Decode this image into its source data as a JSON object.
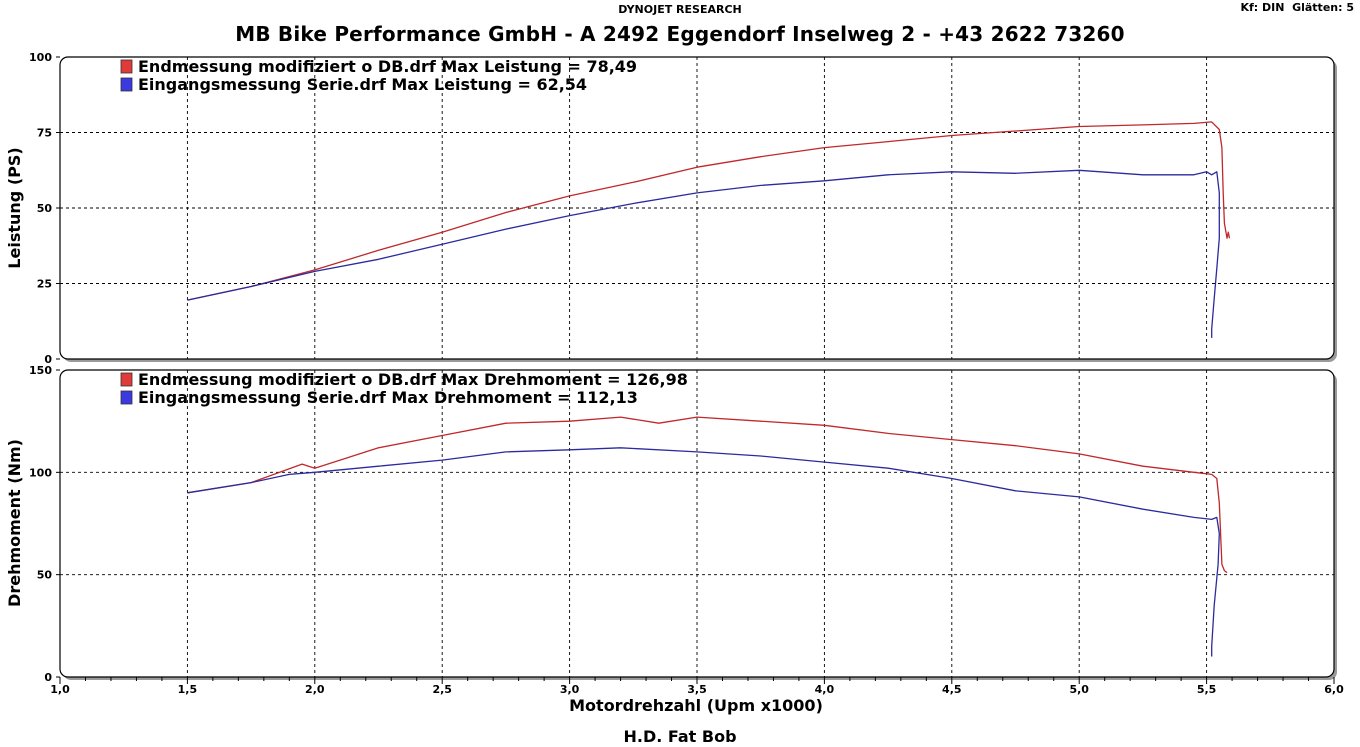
{
  "header": {
    "brand": "DYNOJET RESEARCH",
    "settings": "Kf: DIN  Glätten: 5",
    "title": "MB Bike Performance GmbH - A 2492 Eggendorf Inselweg 2 - +43 2622 73260"
  },
  "footer": {
    "vehicle": "H.D. Fat Bob"
  },
  "colors": {
    "red": "#c0282a",
    "blue": "#2b2b9e",
    "red_swatch": "#e03a3a",
    "blue_swatch": "#3a3ae0"
  },
  "chart_data": [
    {
      "type": "line",
      "ylabel": "Leistung (PS)",
      "xlabel": "Motordrehzahl (Upm x1000)",
      "xlim": [
        1.0,
        6.0
      ],
      "ylim": [
        0,
        100
      ],
      "yticks": [
        "0",
        "25",
        "50",
        "75",
        "100"
      ],
      "xticks": [
        "1,0",
        "1,5",
        "2,0",
        "2,5",
        "3,0",
        "3,5",
        "4,0",
        "4,5",
        "5,0",
        "5,5",
        "6,0"
      ],
      "grid": true,
      "legend_position": "top-left",
      "series": [
        {
          "name": "Endmessung modifiziert o DB.drf Max Leistung = 78,49",
          "color": "red",
          "points": [
            [
              1.5,
              19.5
            ],
            [
              1.75,
              24
            ],
            [
              2.0,
              29.5
            ],
            [
              2.25,
              36
            ],
            [
              2.5,
              42
            ],
            [
              2.75,
              48.5
            ],
            [
              3.0,
              54
            ],
            [
              3.25,
              58.5
            ],
            [
              3.5,
              63.5
            ],
            [
              3.75,
              67
            ],
            [
              4.0,
              70
            ],
            [
              4.25,
              72
            ],
            [
              4.5,
              74
            ],
            [
              4.75,
              75.5
            ],
            [
              5.0,
              77
            ],
            [
              5.25,
              77.5
            ],
            [
              5.45,
              78
            ],
            [
              5.52,
              78.5
            ],
            [
              5.55,
              76
            ],
            [
              5.56,
              70
            ],
            [
              5.565,
              55
            ],
            [
              5.57,
              45
            ],
            [
              5.58,
              40
            ],
            [
              5.585,
              42
            ],
            [
              5.59,
              40
            ]
          ]
        },
        {
          "name": "Eingangsmessung Serie.drf Max Leistung = 62,54",
          "color": "blue",
          "points": [
            [
              1.5,
              19.5
            ],
            [
              1.75,
              24
            ],
            [
              2.0,
              29
            ],
            [
              2.25,
              33
            ],
            [
              2.5,
              38
            ],
            [
              2.75,
              43
            ],
            [
              3.0,
              47.5
            ],
            [
              3.25,
              51.5
            ],
            [
              3.5,
              55
            ],
            [
              3.75,
              57.5
            ],
            [
              4.0,
              59
            ],
            [
              4.25,
              61
            ],
            [
              4.5,
              62
            ],
            [
              4.75,
              61.5
            ],
            [
              5.0,
              62.5
            ],
            [
              5.25,
              61
            ],
            [
              5.45,
              61
            ],
            [
              5.5,
              62
            ],
            [
              5.52,
              61
            ],
            [
              5.54,
              62
            ],
            [
              5.55,
              55
            ],
            [
              5.55,
              40
            ],
            [
              5.54,
              30
            ],
            [
              5.53,
              20
            ],
            [
              5.52,
              10
            ],
            [
              5.52,
              7
            ]
          ]
        }
      ]
    },
    {
      "type": "line",
      "ylabel": "Drehmoment (Nm)",
      "xlabel": "Motordrehzahl (Upm x1000)",
      "xlim": [
        1.0,
        6.0
      ],
      "ylim": [
        0,
        150
      ],
      "yticks": [
        "0",
        "50",
        "100",
        "150"
      ],
      "xticks": [
        "1,0",
        "1,5",
        "2,0",
        "2,5",
        "3,0",
        "3,5",
        "4,0",
        "4,5",
        "5,0",
        "5,5",
        "6,0"
      ],
      "grid": true,
      "legend_position": "top-left",
      "series": [
        {
          "name": "Endmessung modifiziert o DB.drf Max Drehmoment = 126,98",
          "color": "red",
          "points": [
            [
              1.5,
              90
            ],
            [
              1.75,
              95
            ],
            [
              1.95,
              104
            ],
            [
              2.0,
              102
            ],
            [
              2.25,
              112
            ],
            [
              2.5,
              118
            ],
            [
              2.75,
              124
            ],
            [
              3.0,
              125
            ],
            [
              3.2,
              127
            ],
            [
              3.35,
              124
            ],
            [
              3.5,
              127
            ],
            [
              3.75,
              125
            ],
            [
              4.0,
              123
            ],
            [
              4.25,
              119
            ],
            [
              4.5,
              116
            ],
            [
              4.75,
              113
            ],
            [
              5.0,
              109
            ],
            [
              5.25,
              103
            ],
            [
              5.45,
              100
            ],
            [
              5.52,
              99
            ],
            [
              5.54,
              97
            ],
            [
              5.55,
              85
            ],
            [
              5.555,
              70
            ],
            [
              5.56,
              55
            ],
            [
              5.57,
              52
            ],
            [
              5.58,
              51
            ]
          ]
        },
        {
          "name": "Eingangsmessung Serie.drf Max Drehmoment = 112,13",
          "color": "blue",
          "points": [
            [
              1.5,
              90
            ],
            [
              1.75,
              95
            ],
            [
              1.9,
              99
            ],
            [
              2.0,
              100
            ],
            [
              2.25,
              103
            ],
            [
              2.5,
              106
            ],
            [
              2.75,
              110
            ],
            [
              3.0,
              111
            ],
            [
              3.2,
              112
            ],
            [
              3.5,
              110
            ],
            [
              3.75,
              108
            ],
            [
              4.0,
              105
            ],
            [
              4.25,
              102
            ],
            [
              4.5,
              97
            ],
            [
              4.75,
              91
            ],
            [
              5.0,
              88
            ],
            [
              5.25,
              82
            ],
            [
              5.45,
              78
            ],
            [
              5.52,
              77
            ],
            [
              5.54,
              78
            ],
            [
              5.55,
              70
            ],
            [
              5.545,
              55
            ],
            [
              5.53,
              35
            ],
            [
              5.52,
              15
            ],
            [
              5.52,
              10
            ]
          ]
        }
      ]
    }
  ]
}
